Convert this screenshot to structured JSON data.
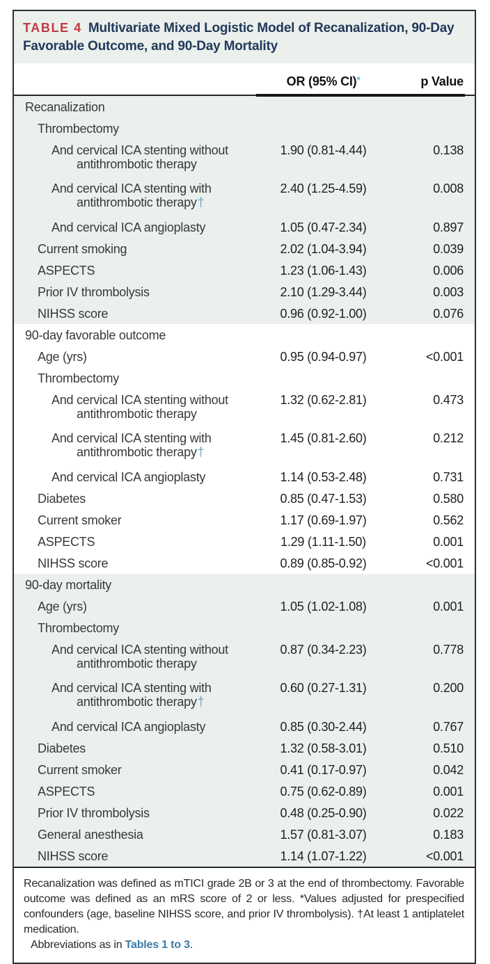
{
  "header": {
    "tag": "TABLE 4",
    "title_line1": "Multivariate Mixed Logistic Model of Recanalization, 90-Day",
    "title_line2": "Favorable Outcome, and 90-Day Mortality"
  },
  "columns": {
    "or_label": "OR (95% CI)",
    "or_marker": "*",
    "p_label": "p Value"
  },
  "sections": [
    {
      "name": "Recanalization",
      "shaded": true,
      "rows": [
        {
          "label": "Thrombectomy",
          "indent": 1
        },
        {
          "label": "And cervical ICA stenting without\nantithrombotic therapy",
          "indent": 2,
          "or": "1.90 (0.81-4.44)",
          "p": "0.138"
        },
        {
          "label": "And cervical ICA stenting with\nantithrombotic therapy",
          "marker": "†",
          "indent": 2,
          "or": "2.40 (1.25-4.59)",
          "p": "0.008"
        },
        {
          "label": "And cervical ICA angioplasty",
          "indent": 2,
          "or": "1.05 (0.47-2.34)",
          "p": "0.897"
        },
        {
          "label": "Current smoking",
          "indent": 1,
          "or": "2.02 (1.04-3.94)",
          "p": "0.039"
        },
        {
          "label": "ASPECTS",
          "indent": 1,
          "or": "1.23 (1.06-1.43)",
          "p": "0.006"
        },
        {
          "label": "Prior IV thrombolysis",
          "indent": 1,
          "or": "2.10 (1.29-3.44)",
          "p": "0.003"
        },
        {
          "label": "NIHSS score",
          "indent": 1,
          "or": "0.96 (0.92-1.00)",
          "p": "0.076"
        }
      ]
    },
    {
      "name": "90-day favorable outcome",
      "shaded": false,
      "rows": [
        {
          "label": "Age (yrs)",
          "indent": 1,
          "or": "0.95 (0.94-0.97)",
          "p": "<0.001"
        },
        {
          "label": "Thrombectomy",
          "indent": 1
        },
        {
          "label": "And cervical ICA stenting without\nantithrombotic therapy",
          "indent": 2,
          "or": "1.32 (0.62-2.81)",
          "p": "0.473"
        },
        {
          "label": "And cervical ICA stenting with\nantithrombotic therapy",
          "marker": "†",
          "indent": 2,
          "or": "1.45 (0.81-2.60)",
          "p": "0.212"
        },
        {
          "label": "And cervical ICA angioplasty",
          "indent": 2,
          "or": "1.14 (0.53-2.48)",
          "p": "0.731"
        },
        {
          "label": "Diabetes",
          "indent": 1,
          "or": "0.85 (0.47-1.53)",
          "p": "0.580"
        },
        {
          "label": "Current smoker",
          "indent": 1,
          "or": "1.17 (0.69-1.97)",
          "p": "0.562"
        },
        {
          "label": "ASPECTS",
          "indent": 1,
          "or": "1.29 (1.11-1.50)",
          "p": "0.001"
        },
        {
          "label": "NIHSS score",
          "indent": 1,
          "or": "0.89 (0.85-0.92)",
          "p": "<0.001"
        }
      ]
    },
    {
      "name": "90-day mortality",
      "shaded": true,
      "rows": [
        {
          "label": "Age (yrs)",
          "indent": 1,
          "or": "1.05 (1.02-1.08)",
          "p": "0.001"
        },
        {
          "label": "Thrombectomy",
          "indent": 1
        },
        {
          "label": "And cervical ICA stenting without\nantithrombotic therapy",
          "indent": 2,
          "or": "0.87 (0.34-2.23)",
          "p": "0.778"
        },
        {
          "label": "And cervical ICA stenting with\nantithrombotic therapy",
          "marker": "†",
          "indent": 2,
          "or": "0.60 (0.27-1.31)",
          "p": "0.200"
        },
        {
          "label": "And cervical ICA angioplasty",
          "indent": 2,
          "or": "0.85 (0.30-2.44)",
          "p": "0.767"
        },
        {
          "label": "Diabetes",
          "indent": 1,
          "or": "1.32 (0.58-3.01)",
          "p": "0.510"
        },
        {
          "label": "Current smoker",
          "indent": 1,
          "or": "0.41 (0.17-0.97)",
          "p": "0.042"
        },
        {
          "label": "ASPECTS",
          "indent": 1,
          "or": "0.75 (0.62-0.89)",
          "p": "0.001"
        },
        {
          "label": "Prior IV thrombolysis",
          "indent": 1,
          "or": "0.48 (0.25-0.90)",
          "p": "0.022"
        },
        {
          "label": "General anesthesia",
          "indent": 1,
          "or": "1.57 (0.81-3.07)",
          "p": "0.183"
        },
        {
          "label": "NIHSS score",
          "indent": 1,
          "or": "1.14 (1.07-1.22)",
          "p": "<0.001"
        }
      ]
    }
  ],
  "footnote": {
    "body": "Recanalization was defined as mTICI grade 2B or 3 at the end of thrombectomy. Favorable outcome was defined as an mRS score of 2 or less. *Values adjusted for prespecified confounders (age, baseline NIHSS score, and prior IV thrombolysis). †At least 1 antiplatelet medication.",
    "abbrev_prefix": "Abbreviations as in ",
    "abbrev_link": "Tables 1 to 3",
    "abbrev_suffix": "."
  },
  "colors": {
    "accent_red": "#bf3a42",
    "title_navy": "#21395b",
    "shade_green": "#ebf0ec",
    "link_blue": "#3a7ca8",
    "marker_blue": "#6aa3c5"
  }
}
